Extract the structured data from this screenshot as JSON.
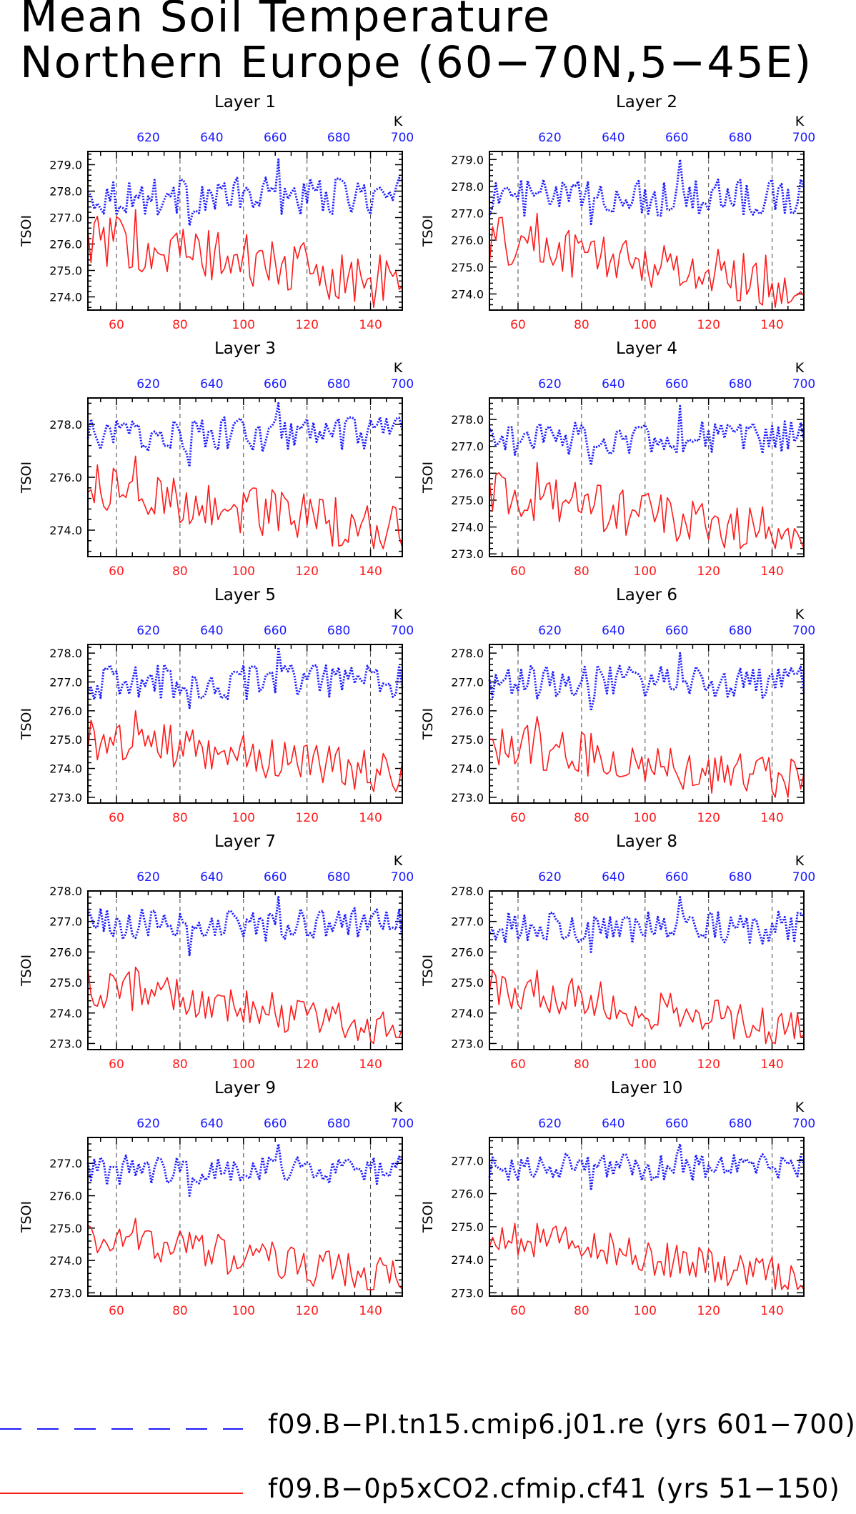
{
  "title_lines": [
    "Mean Soil Temperature",
    "Northern Europe (60−70N,5−45E)"
  ],
  "colors": {
    "series_a": "#1a1aff",
    "series_b": "#ff1a1a",
    "axis": "#000000"
  },
  "legend": [
    {
      "label": "f09.B−PI.tn15.cmip6.j01.re (yrs 601−700)",
      "color": "#1a1aff",
      "style": "long-dash"
    },
    {
      "label": "f09.B−0p5xCO2.cfmip.cf41 (yrs 51−150)",
      "color": "#ff1a1a",
      "style": "solid"
    }
  ],
  "chart_data": [
    {
      "type": "line",
      "title": "Layer 1",
      "ylabel": "TSOI",
      "top_unit": "K",
      "xlim": [
        51,
        150
      ],
      "x_ticks": [
        60,
        80,
        100,
        120,
        140
      ],
      "top_xlim": [
        601,
        700
      ],
      "top_ticks": [
        620,
        640,
        660,
        680,
        700
      ],
      "ylim": [
        273.5,
        279.5
      ],
      "y_ticks": [
        274.0,
        275.0,
        276.0,
        277.0,
        278.0,
        279.0
      ],
      "series": [
        {
          "name": "f09.B−PI.tn15.cmip6.j01.re (yrs 601−700)",
          "axis": "top",
          "color": "#1a1aff",
          "style": "dotted",
          "y_range": [
            276.6,
            279.2
          ],
          "mean": 277.8
        },
        {
          "name": "f09.B−0p5xCO2.cfmip.cf41 (yrs 51−150)",
          "axis": "bottom",
          "color": "#ff1a1a",
          "style": "solid",
          "y_range": [
            273.6,
            277.3
          ],
          "start": 276.2,
          "end": 274.5
        }
      ]
    },
    {
      "type": "line",
      "title": "Layer 2",
      "ylabel": "TSOI",
      "top_unit": "K",
      "xlim": [
        51,
        150
      ],
      "x_ticks": [
        60,
        80,
        100,
        120,
        140
      ],
      "top_xlim": [
        601,
        700
      ],
      "top_ticks": [
        620,
        640,
        660,
        680,
        700
      ],
      "ylim": [
        273.4,
        279.3
      ],
      "y_ticks": [
        274.0,
        275.0,
        276.0,
        277.0,
        278.0,
        279.0
      ],
      "series": [
        {
          "name": "f09.B−PI.tn15.cmip6.j01.re (yrs 601−700)",
          "axis": "top",
          "color": "#1a1aff",
          "style": "dotted",
          "y_range": [
            276.5,
            279.0
          ],
          "mean": 277.6
        },
        {
          "name": "f09.B−0p5xCO2.cfmip.cf41 (yrs 51−150)",
          "axis": "bottom",
          "color": "#ff1a1a",
          "style": "solid",
          "y_range": [
            273.5,
            277.0
          ],
          "start": 276.0,
          "end": 274.3
        }
      ]
    },
    {
      "type": "line",
      "title": "Layer 3",
      "ylabel": "TSOI",
      "top_unit": "K",
      "xlim": [
        51,
        150
      ],
      "x_ticks": [
        60,
        80,
        100,
        120,
        140
      ],
      "top_xlim": [
        601,
        700
      ],
      "top_ticks": [
        620,
        640,
        660,
        680,
        700
      ],
      "ylim": [
        273.0,
        279.0
      ],
      "y_ticks": [
        274.0,
        276.0,
        278.0
      ],
      "series": [
        {
          "name": "f09.B−PI.tn15.cmip6.j01.re (yrs 601−700)",
          "axis": "top",
          "color": "#1a1aff",
          "style": "dotted",
          "y_range": [
            276.3,
            278.8
          ],
          "mean": 277.6
        },
        {
          "name": "f09.B−0p5xCO2.cfmip.cf41 (yrs 51−150)",
          "axis": "bottom",
          "color": "#ff1a1a",
          "style": "solid",
          "y_range": [
            273.3,
            276.8
          ],
          "start": 275.6,
          "end": 274.0
        }
      ]
    },
    {
      "type": "line",
      "title": "Layer 4",
      "ylabel": "TSOI",
      "top_unit": "K",
      "xlim": [
        51,
        150
      ],
      "x_ticks": [
        60,
        80,
        100,
        120,
        140
      ],
      "top_xlim": [
        601,
        700
      ],
      "top_ticks": [
        620,
        640,
        660,
        680,
        700
      ],
      "ylim": [
        272.9,
        278.8
      ],
      "y_ticks": [
        273.0,
        274.0,
        275.0,
        276.0,
        277.0,
        278.0
      ],
      "series": [
        {
          "name": "f09.B−PI.tn15.cmip6.j01.re (yrs 601−700)",
          "axis": "top",
          "color": "#1a1aff",
          "style": "dotted",
          "y_range": [
            276.2,
            278.5
          ],
          "mean": 277.3
        },
        {
          "name": "f09.B−0p5xCO2.cfmip.cf41 (yrs 51−150)",
          "axis": "bottom",
          "color": "#ff1a1a",
          "style": "solid",
          "y_range": [
            273.2,
            276.4
          ],
          "start": 275.2,
          "end": 273.7
        }
      ]
    },
    {
      "type": "line",
      "title": "Layer 5",
      "ylabel": "TSOI",
      "top_unit": "K",
      "xlim": [
        51,
        150
      ],
      "x_ticks": [
        60,
        80,
        100,
        120,
        140
      ],
      "top_xlim": [
        601,
        700
      ],
      "top_ticks": [
        620,
        640,
        660,
        680,
        700
      ],
      "ylim": [
        272.8,
        278.3
      ],
      "y_ticks": [
        273.0,
        274.0,
        275.0,
        276.0,
        277.0,
        278.0
      ],
      "series": [
        {
          "name": "f09.B−PI.tn15.cmip6.j01.re (yrs 601−700)",
          "axis": "top",
          "color": "#1a1aff",
          "style": "dotted",
          "y_range": [
            276.0,
            278.2
          ],
          "mean": 277.0
        },
        {
          "name": "f09.B−0p5xCO2.cfmip.cf41 (yrs 51−150)",
          "axis": "bottom",
          "color": "#ff1a1a",
          "style": "solid",
          "y_range": [
            273.2,
            276.0
          ],
          "start": 275.1,
          "end": 273.7
        }
      ]
    },
    {
      "type": "line",
      "title": "Layer 6",
      "ylabel": "TSOI",
      "top_unit": "K",
      "xlim": [
        51,
        150
      ],
      "x_ticks": [
        60,
        80,
        100,
        120,
        140
      ],
      "top_xlim": [
        601,
        700
      ],
      "top_ticks": [
        620,
        640,
        660,
        680,
        700
      ],
      "ylim": [
        272.8,
        278.3
      ],
      "y_ticks": [
        273.0,
        274.0,
        275.0,
        276.0,
        277.0,
        278.0
      ],
      "series": [
        {
          "name": "f09.B−PI.tn15.cmip6.j01.re (yrs 601−700)",
          "axis": "top",
          "color": "#1a1aff",
          "style": "dotted",
          "y_range": [
            275.9,
            278.0
          ],
          "mean": 277.0
        },
        {
          "name": "f09.B−0p5xCO2.cfmip.cf41 (yrs 51−150)",
          "axis": "bottom",
          "color": "#ff1a1a",
          "style": "solid",
          "y_range": [
            273.0,
            275.8
          ],
          "start": 274.9,
          "end": 273.5
        }
      ]
    },
    {
      "type": "line",
      "title": "Layer 7",
      "ylabel": "TSOI",
      "top_unit": "K",
      "xlim": [
        51,
        150
      ],
      "x_ticks": [
        60,
        80,
        100,
        120,
        140
      ],
      "top_xlim": [
        601,
        700
      ],
      "top_ticks": [
        620,
        640,
        660,
        680,
        700
      ],
      "ylim": [
        272.8,
        278.0
      ],
      "y_ticks": [
        273.0,
        274.0,
        275.0,
        276.0,
        277.0,
        278.0
      ],
      "series": [
        {
          "name": "f09.B−PI.tn15.cmip6.j01.re (yrs 601−700)",
          "axis": "top",
          "color": "#1a1aff",
          "style": "dotted",
          "y_range": [
            275.8,
            277.8
          ],
          "mean": 276.9
        },
        {
          "name": "f09.B−0p5xCO2.cfmip.cf41 (yrs 51−150)",
          "axis": "bottom",
          "color": "#ff1a1a",
          "style": "solid",
          "y_range": [
            273.0,
            275.5
          ],
          "start": 274.9,
          "end": 273.4
        }
      ]
    },
    {
      "type": "line",
      "title": "Layer 8",
      "ylabel": "TSOI",
      "top_unit": "K",
      "xlim": [
        51,
        150
      ],
      "x_ticks": [
        60,
        80,
        100,
        120,
        140
      ],
      "top_xlim": [
        601,
        700
      ],
      "top_ticks": [
        620,
        640,
        660,
        680,
        700
      ],
      "ylim": [
        272.8,
        278.0
      ],
      "y_ticks": [
        273.0,
        274.0,
        275.0,
        276.0,
        277.0,
        278.0
      ],
      "series": [
        {
          "name": "f09.B−PI.tn15.cmip6.j01.re (yrs 601−700)",
          "axis": "top",
          "color": "#1a1aff",
          "style": "dotted",
          "y_range": [
            275.9,
            277.8
          ],
          "mean": 276.8
        },
        {
          "name": "f09.B−0p5xCO2.cfmip.cf41 (yrs 51−150)",
          "axis": "bottom",
          "color": "#ff1a1a",
          "style": "solid",
          "y_range": [
            273.0,
            275.4
          ],
          "start": 274.9,
          "end": 273.4
        }
      ]
    },
    {
      "type": "line",
      "title": "Layer 9",
      "ylabel": "TSOI",
      "top_unit": "K",
      "xlim": [
        51,
        150
      ],
      "x_ticks": [
        60,
        80,
        100,
        120,
        140
      ],
      "top_xlim": [
        601,
        700
      ],
      "top_ticks": [
        620,
        640,
        660,
        680,
        700
      ],
      "ylim": [
        272.9,
        277.8
      ],
      "y_ticks": [
        273.0,
        274.0,
        275.0,
        276.0,
        277.0
      ],
      "series": [
        {
          "name": "f09.B−PI.tn15.cmip6.j01.re (yrs 601−700)",
          "axis": "top",
          "color": "#1a1aff",
          "style": "dotted",
          "y_range": [
            275.9,
            277.6
          ],
          "mean": 276.8
        },
        {
          "name": "f09.B−0p5xCO2.cfmip.cf41 (yrs 51−150)",
          "axis": "bottom",
          "color": "#ff1a1a",
          "style": "solid",
          "y_range": [
            273.1,
            275.3
          ],
          "start": 274.8,
          "end": 273.4
        }
      ]
    },
    {
      "type": "line",
      "title": "Layer 10",
      "ylabel": "TSOI",
      "top_unit": "K",
      "xlim": [
        51,
        150
      ],
      "x_ticks": [
        60,
        80,
        100,
        120,
        140
      ],
      "top_xlim": [
        601,
        700
      ],
      "top_ticks": [
        620,
        640,
        660,
        680,
        700
      ],
      "ylim": [
        272.9,
        277.7
      ],
      "y_ticks": [
        273.0,
        274.0,
        275.0,
        276.0,
        277.0
      ],
      "series": [
        {
          "name": "f09.B−PI.tn15.cmip6.j01.re (yrs 601−700)",
          "axis": "top",
          "color": "#1a1aff",
          "style": "dotted",
          "y_range": [
            276.0,
            277.5
          ],
          "mean": 276.8
        },
        {
          "name": "f09.B−0p5xCO2.cfmip.cf41 (yrs 51−150)",
          "axis": "bottom",
          "color": "#ff1a1a",
          "style": "solid",
          "y_range": [
            273.1,
            275.1
          ],
          "start": 274.8,
          "end": 273.4
        }
      ]
    }
  ]
}
